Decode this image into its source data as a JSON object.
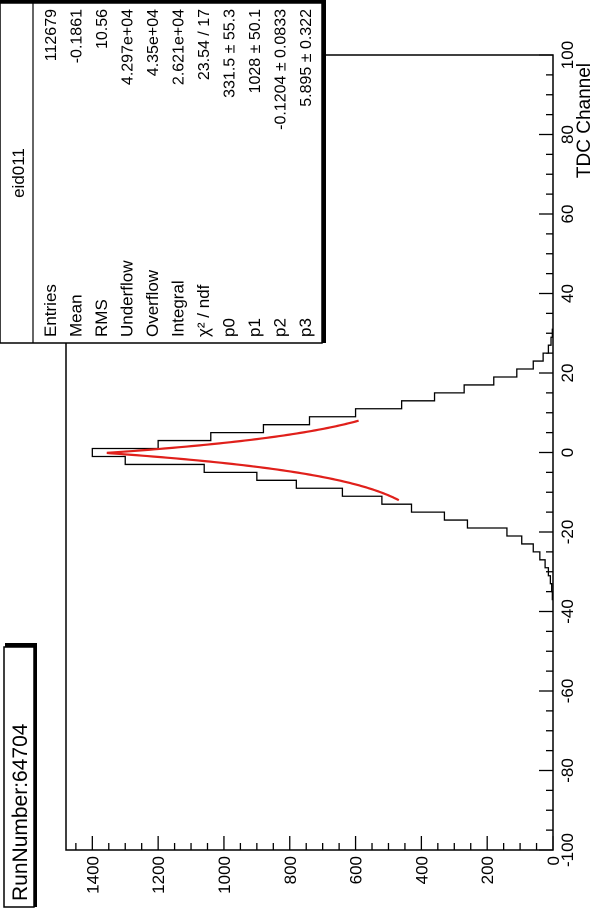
{
  "run_label": "RunNumber:64704",
  "stats": {
    "title": "eid011",
    "rows": [
      {
        "name": "Entries",
        "value": "112679"
      },
      {
        "name": "Mean",
        "value": "-0.1861"
      },
      {
        "name": "RMS",
        "value": "10.56"
      },
      {
        "name": "Underflow",
        "value": "4.297e+04"
      },
      {
        "name": "Overflow",
        "value": "4.35e+04"
      },
      {
        "name": "Integral",
        "value": "2.621e+04"
      },
      {
        "name": "χ² / ndf",
        "value": "23.54 / 17"
      },
      {
        "name": "p0",
        "value": "331.5 ± 55.3"
      },
      {
        "name": "p1",
        "value": "1028 ± 50.1"
      },
      {
        "name": "p2",
        "value": "-0.1204 ± 0.0833"
      },
      {
        "name": "p3",
        "value": "5.895 ± 0.322"
      }
    ]
  },
  "chart_data": {
    "type": "bar",
    "histogram": true,
    "xlabel": "TDC Channel",
    "ylabel": "",
    "xlim": [
      -100,
      100
    ],
    "ylim": [
      0,
      1480
    ],
    "x_ticks": [
      -100,
      -80,
      -60,
      -40,
      -20,
      0,
      20,
      40,
      60,
      80,
      100
    ],
    "y_ticks": [
      0,
      200,
      400,
      600,
      800,
      1000,
      1200,
      1400
    ],
    "bins": [
      {
        "x": -36,
        "y": 2
      },
      {
        "x": -34,
        "y": 4
      },
      {
        "x": -32,
        "y": 8
      },
      {
        "x": -30,
        "y": 14
      },
      {
        "x": -28,
        "y": 24
      },
      {
        "x": -26,
        "y": 40
      },
      {
        "x": -24,
        "y": 60
      },
      {
        "x": -22,
        "y": 95
      },
      {
        "x": -20,
        "y": 140
      },
      {
        "x": -18,
        "y": 260
      },
      {
        "x": -16,
        "y": 330
      },
      {
        "x": -14,
        "y": 430
      },
      {
        "x": -12,
        "y": 520
      },
      {
        "x": -10,
        "y": 640
      },
      {
        "x": -8,
        "y": 780
      },
      {
        "x": -6,
        "y": 900
      },
      {
        "x": -4,
        "y": 1060
      },
      {
        "x": -2,
        "y": 1300
      },
      {
        "x": 0,
        "y": 1400
      },
      {
        "x": 2,
        "y": 1200
      },
      {
        "x": 4,
        "y": 1040
      },
      {
        "x": 6,
        "y": 880
      },
      {
        "x": 8,
        "y": 740
      },
      {
        "x": 10,
        "y": 600
      },
      {
        "x": 12,
        "y": 460
      },
      {
        "x": 14,
        "y": 360
      },
      {
        "x": 16,
        "y": 270
      },
      {
        "x": 18,
        "y": 180
      },
      {
        "x": 20,
        "y": 110
      },
      {
        "x": 22,
        "y": 60
      },
      {
        "x": 24,
        "y": 30
      },
      {
        "x": 26,
        "y": 14
      },
      {
        "x": 28,
        "y": 6
      },
      {
        "x": 30,
        "y": 2
      }
    ],
    "fit": {
      "color": "#e0201b",
      "range": [
        -12,
        8
      ],
      "p0": 331.5,
      "p1": 1028,
      "p2": -0.1204,
      "p3": 5.895
    },
    "histogram_color": "#000000"
  }
}
